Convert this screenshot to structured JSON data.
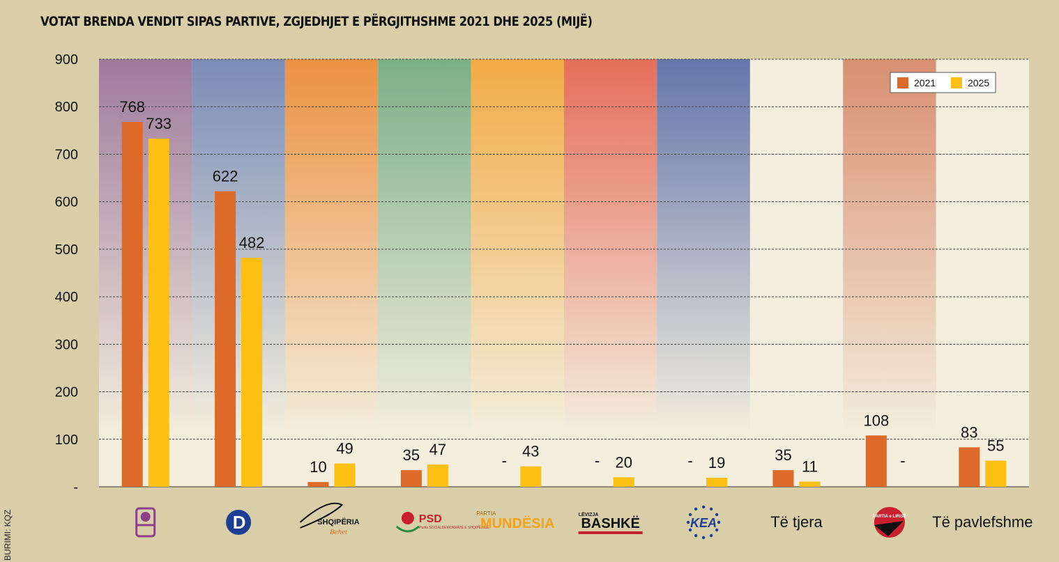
{
  "title": "VOTAT BRENDA VENDIT SIPAS PARTIVE, ZGJEDHJET E PËRGJITHSHME 2021 DHE 2025 (MIJË)",
  "source": "BURIMI: KQZ",
  "missing_marker": "-",
  "colors": {
    "page_bg": "#d8cfa8",
    "plot_bg": "#f3eedd",
    "bar_2021": "#dd6a28",
    "bar_2025": "#fcbf12",
    "grid": "#444444"
  },
  "chart_data": {
    "type": "bar",
    "title": "VOTAT BRENDA VENDIT SIPAS PARTIVE, ZGJEDHJET E PËRGJITHSHME 2021 DHE 2025 (MIJË)",
    "xlabel": "",
    "ylabel": "",
    "ylim": [
      0,
      900
    ],
    "yticks": [
      900,
      800,
      700,
      600,
      500,
      400,
      300,
      200,
      100
    ],
    "yticks_labels": [
      "900",
      "800",
      "700",
      "600",
      "500",
      "400",
      "300",
      "200",
      "100",
      "-"
    ],
    "grid": true,
    "grid_style": "dashed",
    "legend_position": "top-right",
    "categories": [
      {
        "name": "ps-logo",
        "label": "",
        "band_color": "#9e7a9c",
        "logo": "ps-rose-icon"
      },
      {
        "name": "pd-logo",
        "label": "",
        "band_color": "#7a8cb6",
        "logo": "pd-icon"
      },
      {
        "name": "shqiperia-behet-logo",
        "label": "",
        "logo_text": "SHQIPËRIA",
        "logo_subtext": "Behet",
        "band_color": "#ec9142",
        "logo": "shqiperia-behet-icon"
      },
      {
        "name": "psd-logo",
        "label": "",
        "logo_text": "PSD",
        "logo_subtext": "Partia SOCIALDEMOKRATE E SHQIPËRISË",
        "band_color": "#7daf86",
        "logo": "psd-rose-icon"
      },
      {
        "name": "mundesia-logo",
        "label": "",
        "logo_text": "MUNDËSIA",
        "logo_subtext": "PARTIA",
        "band_color": "#f2ab46",
        "logo": "mundesia-icon"
      },
      {
        "name": "bashke-logo",
        "label": "",
        "logo_text": "BASHKË",
        "logo_subtext": "LËVIZJA",
        "band_color": "#e66e5c",
        "logo": "bashke-icon"
      },
      {
        "name": "kea-logo",
        "label": "",
        "logo_text": "KEA",
        "band_color": "#6476ab",
        "logo": "kea-stars-icon"
      },
      {
        "name": "te-tjera",
        "label": "Të tjera",
        "band_color": null,
        "logo": null
      },
      {
        "name": "partia-e-lirise-logo",
        "label": "",
        "logo_text": "PARTIA e LIRISË",
        "band_color": "#d98f72",
        "logo": "liria-icon"
      },
      {
        "name": "te-pavlefshme",
        "label": "Të pavlefshme",
        "band_color": null,
        "logo": null
      }
    ],
    "series": [
      {
        "name": "2021",
        "color": "#dd6a28",
        "values": [
          768,
          622,
          10,
          35,
          null,
          null,
          null,
          35,
          108,
          83
        ]
      },
      {
        "name": "2025",
        "color": "#fcbf12",
        "values": [
          733,
          482,
          49,
          47,
          43,
          20,
          19,
          11,
          null,
          55
        ]
      }
    ]
  }
}
